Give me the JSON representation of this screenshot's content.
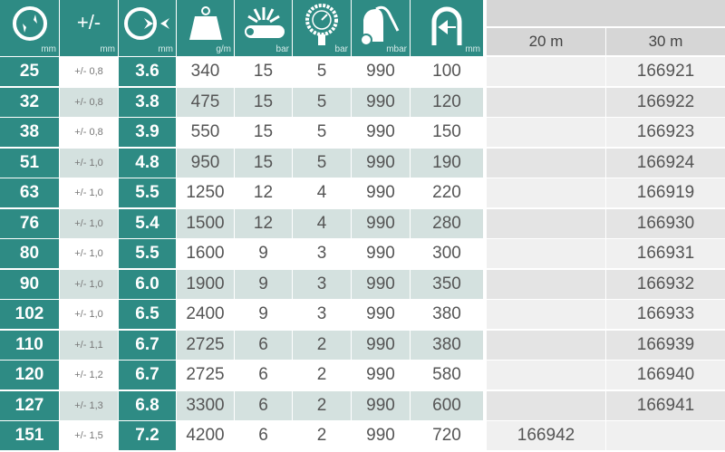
{
  "colors": {
    "accent": "#2e8b84",
    "row_alt": "#d4e1df",
    "right_row": "#f0f0f0",
    "right_row_alt": "#e4e4e4"
  },
  "header": {
    "columns": [
      {
        "icon": "diameter-icon",
        "unit": "mm"
      },
      {
        "label": "+/-",
        "unit": "mm"
      },
      {
        "icon": "wall-thickness-icon",
        "unit": "mm"
      },
      {
        "icon": "weight-icon",
        "unit": "g/m"
      },
      {
        "icon": "burst-pipe-icon",
        "unit": "bar"
      },
      {
        "icon": "pressure-gauge-icon",
        "unit": "bar"
      },
      {
        "icon": "vacuum-icon",
        "unit": "mbar"
      },
      {
        "icon": "bend-radius-icon",
        "unit": "mm"
      }
    ],
    "lengths": [
      "20 m",
      "30 m"
    ]
  },
  "rows": [
    {
      "d": "25",
      "tol": "+/- 0,8",
      "wall": "3.6",
      "weight": "340",
      "burst": "15",
      "pressure": "5",
      "vacuum": "990",
      "radius": "100",
      "m20": "",
      "m30": "166921"
    },
    {
      "d": "32",
      "tol": "+/- 0,8",
      "wall": "3.8",
      "weight": "475",
      "burst": "15",
      "pressure": "5",
      "vacuum": "990",
      "radius": "120",
      "m20": "",
      "m30": "166922"
    },
    {
      "d": "38",
      "tol": "+/- 0,8",
      "wall": "3.9",
      "weight": "550",
      "burst": "15",
      "pressure": "5",
      "vacuum": "990",
      "radius": "150",
      "m20": "",
      "m30": "166923"
    },
    {
      "d": "51",
      "tol": "+/- 1,0",
      "wall": "4.8",
      "weight": "950",
      "burst": "15",
      "pressure": "5",
      "vacuum": "990",
      "radius": "190",
      "m20": "",
      "m30": "166924"
    },
    {
      "d": "63",
      "tol": "+/- 1,0",
      "wall": "5.5",
      "weight": "1250",
      "burst": "12",
      "pressure": "4",
      "vacuum": "990",
      "radius": "220",
      "m20": "",
      "m30": "166919"
    },
    {
      "d": "76",
      "tol": "+/- 1,0",
      "wall": "5.4",
      "weight": "1500",
      "burst": "12",
      "pressure": "4",
      "vacuum": "990",
      "radius": "280",
      "m20": "",
      "m30": "166930"
    },
    {
      "d": "80",
      "tol": "+/- 1,0",
      "wall": "5.5",
      "weight": "1600",
      "burst": "9",
      "pressure": "3",
      "vacuum": "990",
      "radius": "300",
      "m20": "",
      "m30": "166931"
    },
    {
      "d": "90",
      "tol": "+/- 1,0",
      "wall": "6.0",
      "weight": "1900",
      "burst": "9",
      "pressure": "3",
      "vacuum": "990",
      "radius": "350",
      "m20": "",
      "m30": "166932"
    },
    {
      "d": "102",
      "tol": "+/- 1,0",
      "wall": "6.5",
      "weight": "2400",
      "burst": "9",
      "pressure": "3",
      "vacuum": "990",
      "radius": "380",
      "m20": "",
      "m30": "166933"
    },
    {
      "d": "110",
      "tol": "+/- 1,1",
      "wall": "6.7",
      "weight": "2725",
      "burst": "6",
      "pressure": "2",
      "vacuum": "990",
      "radius": "380",
      "m20": "",
      "m30": "166939"
    },
    {
      "d": "120",
      "tol": "+/- 1,2",
      "wall": "6.7",
      "weight": "2725",
      "burst": "6",
      "pressure": "2",
      "vacuum": "990",
      "radius": "580",
      "m20": "",
      "m30": "166940"
    },
    {
      "d": "127",
      "tol": "+/- 1,3",
      "wall": "6.8",
      "weight": "3300",
      "burst": "6",
      "pressure": "2",
      "vacuum": "990",
      "radius": "600",
      "m20": "",
      "m30": "166941"
    },
    {
      "d": "151",
      "tol": "+/- 1,5",
      "wall": "7.2",
      "weight": "4200",
      "burst": "6",
      "pressure": "2",
      "vacuum": "990",
      "radius": "720",
      "m20": "166942",
      "m30": ""
    }
  ]
}
